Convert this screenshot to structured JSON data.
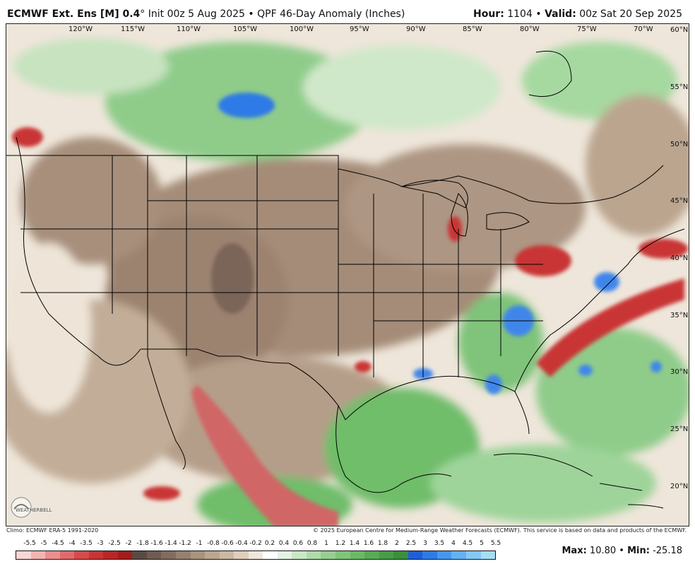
{
  "header": {
    "model": "ECMWF Ext. Ens [M] 0.4",
    "degree": "°",
    "init": " Init 00z 5 Aug 2025",
    "bullet": " • ",
    "product": "QPF 46-Day Anomaly (Inches)",
    "hour_label": "Hour:",
    "hour_value": " 1104",
    "valid_label": "Valid:",
    "valid_value": " 00z Sat 20 Sep 2025"
  },
  "axes": {
    "lon_labels": [
      "120°W",
      "115°W",
      "110°W",
      "105°W",
      "100°W",
      "95°W",
      "90°W",
      "85°W",
      "80°W",
      "75°W",
      "70°W"
    ],
    "lat_labels": [
      "60°N",
      "55°N",
      "50°N",
      "45°N",
      "40°N",
      "35°N",
      "30°N",
      "25°N",
      "20°N"
    ]
  },
  "footer": {
    "climo": "Climo: ECMWF ERA-5 1991-2020",
    "copyright": "© 2025 European Centre for Medium-Range Weather Forecasts (ECMWF). This service is based on data and products of the ECMWF."
  },
  "logo": {
    "text": "WEATHERBELL"
  },
  "scale": {
    "labels": [
      "-5.5",
      "-5",
      "-4.5",
      "-4",
      "-3.5",
      "-3",
      "-2.5",
      "-2",
      "-1.8",
      "-1.6",
      "-1.4",
      "-1.2",
      "-1",
      "-0.8",
      "-0.6",
      "-0.4",
      "-0.2",
      "0.2",
      "0.4",
      "0.6",
      "0.8",
      "1",
      "1.2",
      "1.4",
      "1.6",
      "1.8",
      "2",
      "2.5",
      "3",
      "3.5",
      "4",
      "4.5",
      "5",
      "5.5"
    ],
    "colors": [
      "#f9d6d6",
      "#f3b3b3",
      "#ea8e8e",
      "#e06a6a",
      "#d54a4a",
      "#c93434",
      "#b82626",
      "#a31c1c",
      "#5a4a44",
      "#6e5b52",
      "#826c60",
      "#96806f",
      "#a9937f",
      "#bba690",
      "#cbb8a3",
      "#ddcebd",
      "#efe6dc",
      "#ffffff",
      "#e4f2e4",
      "#c9e7c6",
      "#afdbab",
      "#95cf90",
      "#7fc47a",
      "#6cb868",
      "#58aa56",
      "#479c47",
      "#3a8e3d",
      "#1e5fd8",
      "#2f7ae6",
      "#4796ee",
      "#64b0f3",
      "#84c8f6",
      "#a7dcf8"
    ]
  },
  "stats": {
    "max_label": "Max:",
    "max_value": " 10.80",
    "sep": " • ",
    "min_label": "Min:",
    "min_value": " -25.18"
  }
}
